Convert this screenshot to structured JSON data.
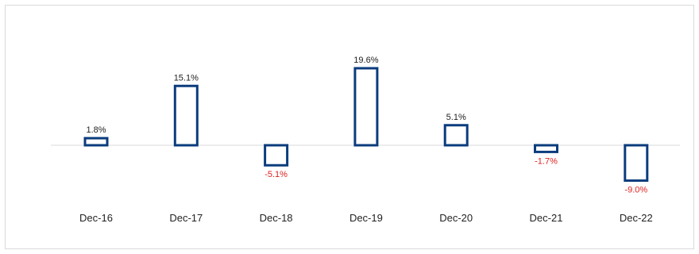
{
  "chart_data": {
    "type": "bar",
    "categories": [
      "Dec-16",
      "Dec-17",
      "Dec-18",
      "Dec-19",
      "Dec-20",
      "Dec-21",
      "Dec-22"
    ],
    "values": [
      1.8,
      15.1,
      -5.1,
      19.6,
      5.1,
      -1.7,
      -9.0
    ],
    "value_labels": [
      "1.8%",
      "15.1%",
      "-5.1%",
      "19.6%",
      "5.1%",
      "-1.7%",
      "-9.0%"
    ],
    "title": "",
    "xlabel": "",
    "ylabel": "",
    "ylim": [
      -12,
      22
    ],
    "grid": false,
    "legend": "none",
    "colors": {
      "bar_outline": "#0b3c7d",
      "positive_label": "#222222",
      "negative_label": "#e02020",
      "zero_line": "#d9d9d9"
    }
  }
}
